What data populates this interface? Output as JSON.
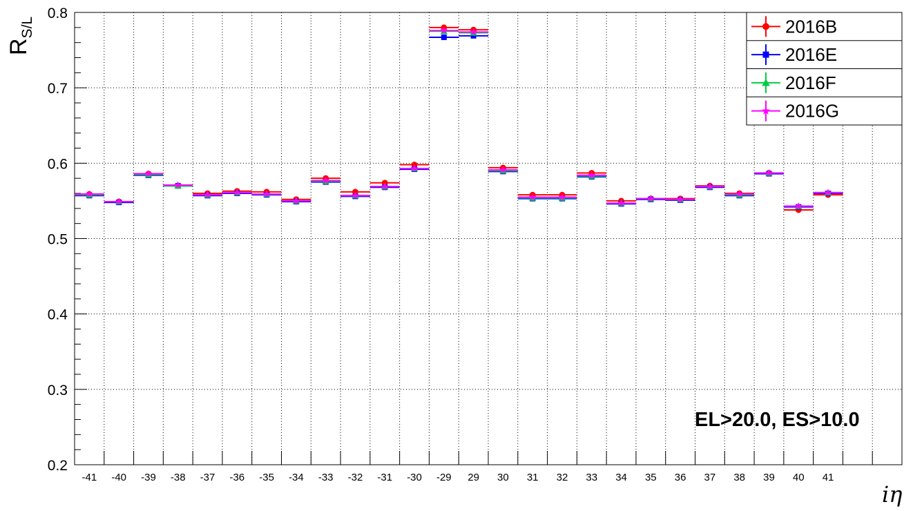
{
  "chart_data": {
    "type": "scatter",
    "title": "",
    "xlabel": "iη",
    "ylabel": "R",
    "ylabel_subscript": "S/L",
    "ylim": [
      0.2,
      0.8
    ],
    "yticks": [
      "0.2",
      "0.3",
      "0.4",
      "0.5",
      "0.6",
      "0.7",
      "0.8"
    ],
    "categories": [
      "-41",
      "-40",
      "-39",
      "-38",
      "-37",
      "-36",
      "-35",
      "-34",
      "-33",
      "-32",
      "-31",
      "-30",
      "-29",
      "29",
      "30",
      "31",
      "32",
      "33",
      "34",
      "35",
      "36",
      "37",
      "38",
      "39",
      "40",
      "41"
    ],
    "grid": true,
    "legend_position": "top-right",
    "annotation": "EL>20.0, ES>10.0",
    "series": [
      {
        "name": "2016B",
        "color": "#ff0000",
        "marker": "circle",
        "values": [
          0.559,
          0.549,
          0.586,
          0.57,
          0.56,
          0.563,
          0.562,
          0.552,
          0.58,
          0.562,
          0.574,
          0.598,
          0.78,
          0.777,
          0.594,
          0.558,
          0.558,
          0.587,
          0.55,
          0.553,
          0.553,
          0.57,
          0.56,
          0.587,
          0.538,
          0.558
        ]
      },
      {
        "name": "2016E",
        "color": "#0000ff",
        "marker": "square",
        "values": [
          0.557,
          0.548,
          0.584,
          0.57,
          0.557,
          0.56,
          0.558,
          0.549,
          0.575,
          0.556,
          0.568,
          0.592,
          0.767,
          0.769,
          0.589,
          0.553,
          0.553,
          0.582,
          0.546,
          0.552,
          0.551,
          0.568,
          0.557,
          0.586,
          0.542,
          0.56
        ]
      },
      {
        "name": "2016F",
        "color": "#00cc44",
        "marker": "triangle",
        "values": [
          0.558,
          0.549,
          0.585,
          0.57,
          0.558,
          0.561,
          0.559,
          0.55,
          0.576,
          0.557,
          0.569,
          0.593,
          0.775,
          0.773,
          0.59,
          0.554,
          0.554,
          0.583,
          0.547,
          0.553,
          0.552,
          0.569,
          0.558,
          0.587,
          0.543,
          0.561
        ]
      },
      {
        "name": "2016G",
        "color": "#ff00ff",
        "marker": "star",
        "values": [
          0.559,
          0.549,
          0.586,
          0.571,
          0.558,
          0.561,
          0.559,
          0.55,
          0.577,
          0.557,
          0.569,
          0.593,
          0.776,
          0.774,
          0.591,
          0.555,
          0.555,
          0.584,
          0.547,
          0.553,
          0.552,
          0.569,
          0.559,
          0.587,
          0.543,
          0.561
        ]
      }
    ]
  }
}
